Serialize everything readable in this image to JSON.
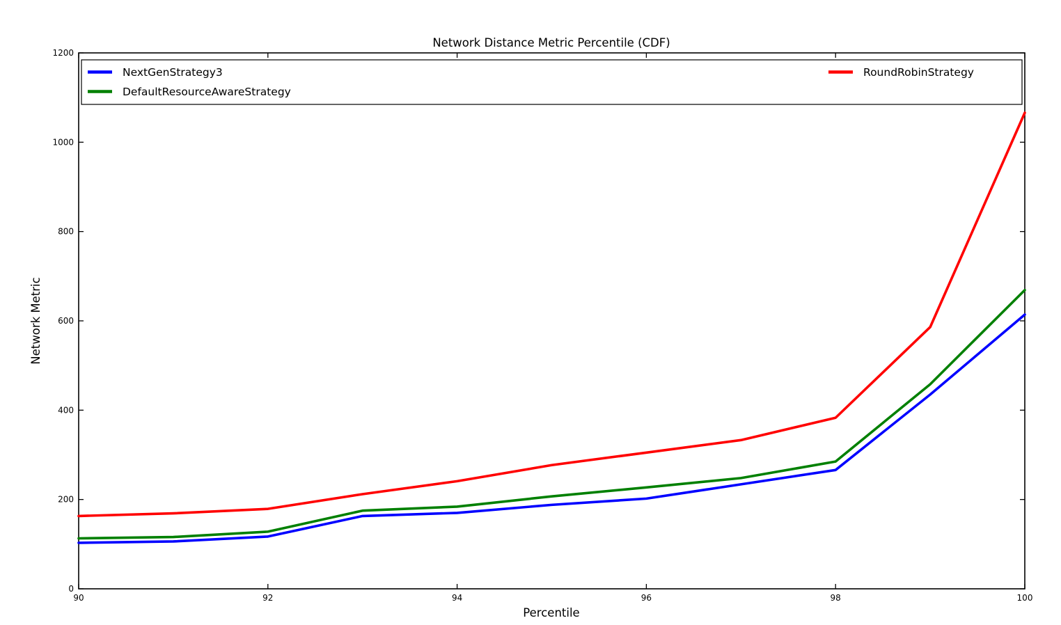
{
  "figure": {
    "background_color": "#ffffff",
    "text_color": "#000000",
    "axes_color": "#000000"
  },
  "chart_data": {
    "type": "line",
    "title": "Network Distance Metric Percentile (CDF)",
    "xlabel": "Percentile",
    "ylabel": "Network Metric",
    "xlim": [
      90,
      100
    ],
    "ylim": [
      0,
      1200
    ],
    "x_ticks": [
      90,
      92,
      94,
      96,
      98,
      100
    ],
    "y_ticks": [
      0,
      200,
      400,
      600,
      800,
      1000,
      1200
    ],
    "grid": false,
    "legend": {
      "position": "inside top, full-width box, two columns",
      "border_color": "#000000"
    },
    "x": [
      90,
      91,
      92,
      93,
      94,
      95,
      96,
      97,
      98,
      99,
      100
    ],
    "series": [
      {
        "name": "NextGenStrategy3",
        "color": "#0000ff",
        "values": [
          103,
          106,
          117,
          163,
          170,
          188,
          202,
          234,
          266,
          435,
          614
        ]
      },
      {
        "name": "DefaultResourceAwareStrategy",
        "color": "#008000",
        "values": [
          113,
          116,
          128,
          175,
          184,
          207,
          227,
          248,
          285,
          458,
          669
        ]
      },
      {
        "name": "RoundRobinStrategy",
        "color": "#ff0000",
        "values": [
          163,
          169,
          179,
          212,
          241,
          277,
          305,
          333,
          383,
          586,
          1066
        ]
      }
    ]
  }
}
